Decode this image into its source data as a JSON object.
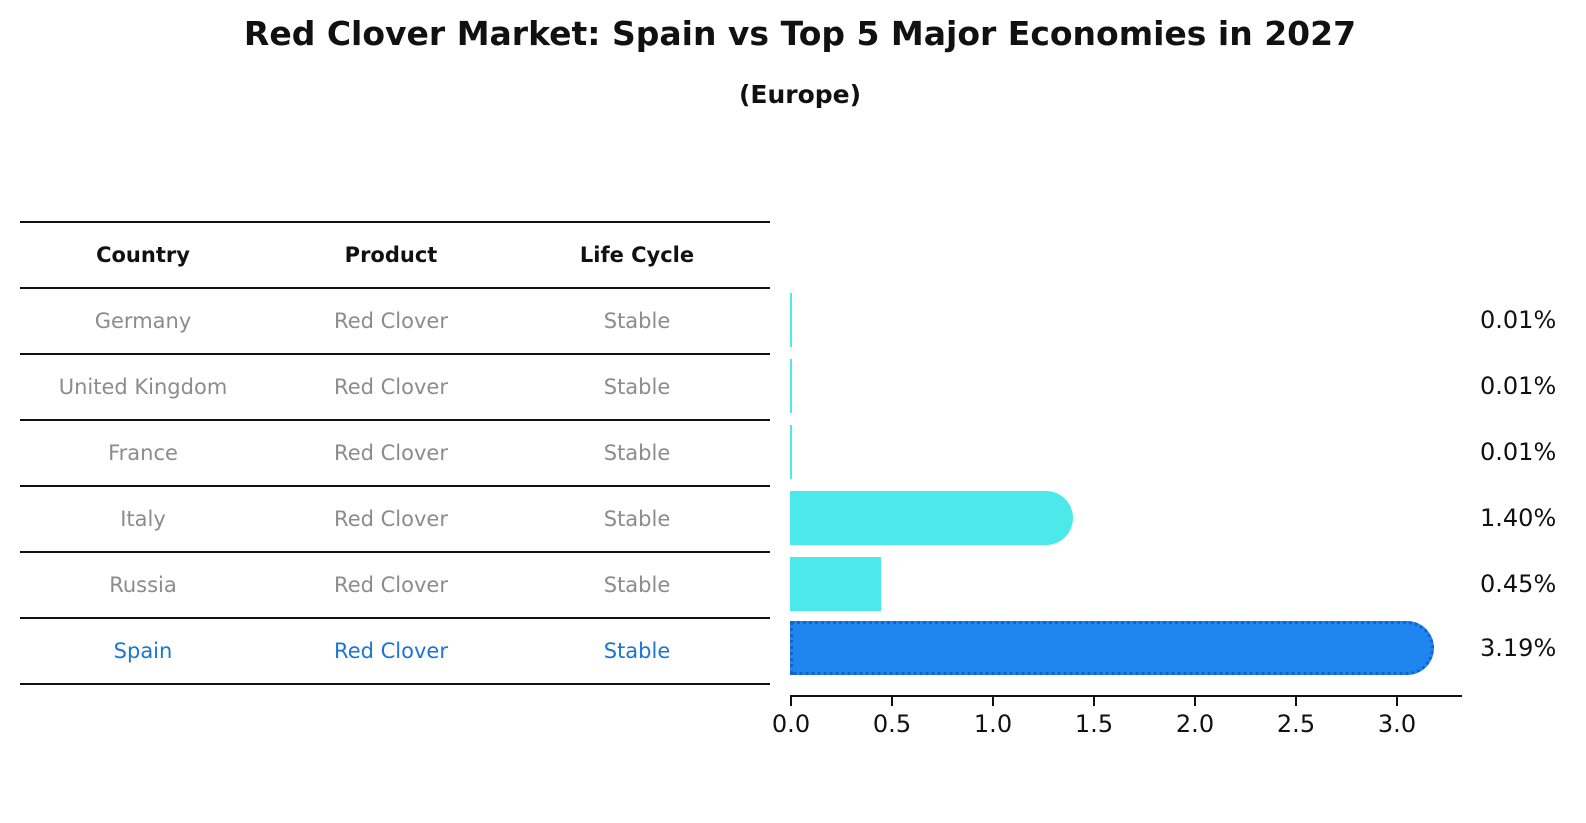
{
  "title": "Red Clover Market: Spain vs Top 5 Major Economies in 2027",
  "subtitle": "(Europe)",
  "table": {
    "headers": [
      "Country",
      "Product",
      "Life Cycle"
    ],
    "rows": [
      {
        "country": "Germany",
        "product": "Red Clover",
        "life_cycle": "Stable"
      },
      {
        "country": "United Kingdom",
        "product": "Red Clover",
        "life_cycle": "Stable"
      },
      {
        "country": "France",
        "product": "Red Clover",
        "life_cycle": "Stable"
      },
      {
        "country": "Italy",
        "product": "Red Clover",
        "life_cycle": "Stable"
      },
      {
        "country": "Russia",
        "product": "Red Clover",
        "life_cycle": "Stable"
      },
      {
        "country": "Spain",
        "product": "Red Clover",
        "life_cycle": "Stable"
      }
    ],
    "highlighted_row": "Spain"
  },
  "chart_data": {
    "type": "bar",
    "orientation": "horizontal",
    "title": "Red Clover Market: Spain vs Top 5 Major Economies in 2027",
    "subtitle": "(Europe)",
    "categories": [
      "Germany",
      "United Kingdom",
      "France",
      "Italy",
      "Russia",
      "Spain"
    ],
    "values": [
      0.01,
      0.01,
      0.01,
      1.4,
      0.45,
      3.19
    ],
    "value_labels": [
      "0.01%",
      "0.01%",
      "0.01%",
      "1.40%",
      "0.45%",
      "3.19%"
    ],
    "x_ticks": [
      "0.0",
      "0.5",
      "1.0",
      "1.5",
      "2.0",
      "2.5",
      "3.0"
    ],
    "xlim": [
      0,
      3.32
    ],
    "grid": false,
    "legend": "none",
    "bar_color": "#4de9ea",
    "highlight_bar_color": "#1e86ee",
    "highlight_border_color": "#1463cc",
    "highlight_index": 5
  },
  "colors": {
    "text": "#111111",
    "row_text": "#8c8c8c",
    "highlight_text": "#1b76d2",
    "axis": "#111111"
  }
}
